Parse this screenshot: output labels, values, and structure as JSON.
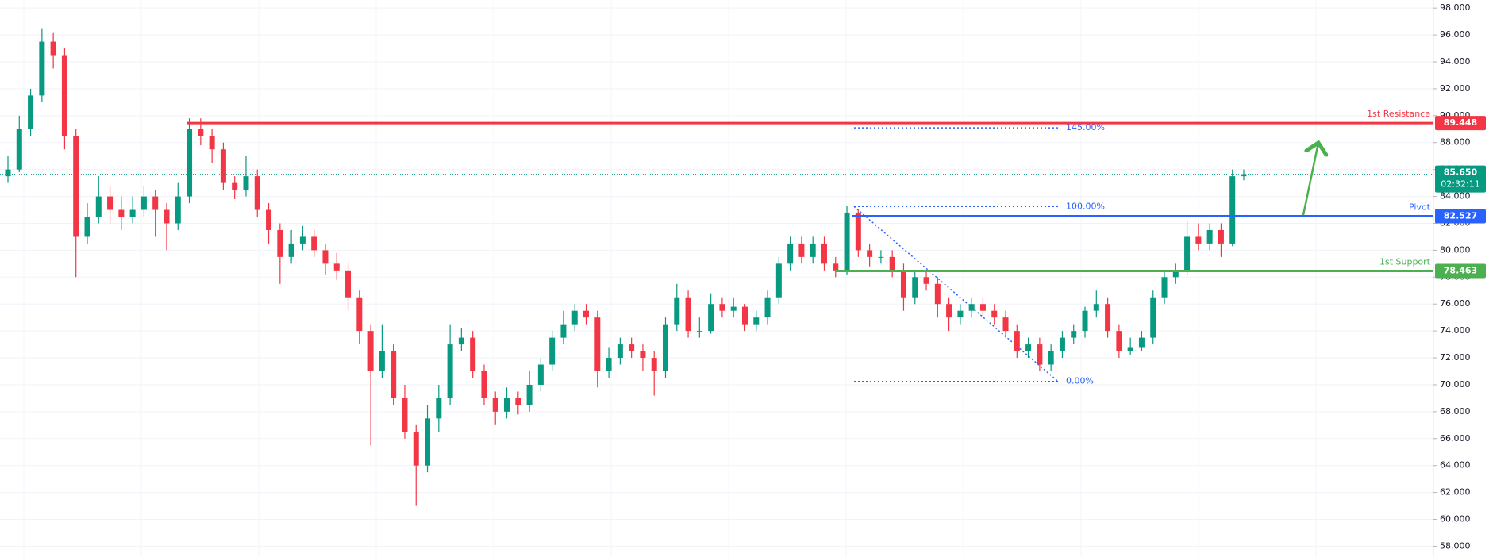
{
  "chart_data": {
    "type": "candlestick",
    "up_color": "#089981",
    "down_color": "#f23645",
    "ylim": [
      57.2,
      98.6
    ],
    "yticks": [
      {
        "value": 58,
        "label": "58.000"
      },
      {
        "value": 60,
        "label": "60.000"
      },
      {
        "value": 62,
        "label": "62.000"
      },
      {
        "value": 64,
        "label": "64.000"
      },
      {
        "value": 66,
        "label": "66.000"
      },
      {
        "value": 68,
        "label": "68.000"
      },
      {
        "value": 70,
        "label": "70.000"
      },
      {
        "value": 72,
        "label": "72.000"
      },
      {
        "value": 74,
        "label": "74.000"
      },
      {
        "value": 76,
        "label": "76.000"
      },
      {
        "value": 78,
        "label": "78.000"
      },
      {
        "value": 80,
        "label": "80.000"
      },
      {
        "value": 82,
        "label": "82.000"
      },
      {
        "value": 84,
        "label": "84.000"
      },
      {
        "value": 86,
        "label": "86.000"
      },
      {
        "value": 88,
        "label": "88.000"
      },
      {
        "value": 90,
        "label": "90.000"
      },
      {
        "value": 92,
        "label": "92.000"
      },
      {
        "value": 94,
        "label": "94.000"
      },
      {
        "value": 96,
        "label": "96.000"
      },
      {
        "value": 98,
        "label": "98.000"
      }
    ],
    "grid": true,
    "ohlc": [
      [
        85.5,
        87,
        85,
        86
      ],
      [
        86,
        90,
        85.8,
        89
      ],
      [
        89,
        92,
        88.5,
        91.5
      ],
      [
        91.5,
        96.5,
        91,
        95.5
      ],
      [
        95.5,
        96.2,
        93.5,
        94.5
      ],
      [
        94.5,
        95,
        87.5,
        88.5
      ],
      [
        88.5,
        89,
        78,
        81
      ],
      [
        81,
        83.5,
        80.5,
        82.5
      ],
      [
        82.5,
        85.5,
        82,
        84
      ],
      [
        84,
        84.8,
        82,
        83
      ],
      [
        83,
        84,
        81.5,
        82.5
      ],
      [
        82.5,
        84,
        82,
        83
      ],
      [
        83,
        84.8,
        82.5,
        84
      ],
      [
        84,
        84.5,
        81,
        83
      ],
      [
        83,
        83.5,
        80,
        82
      ],
      [
        82,
        85,
        81.5,
        84
      ],
      [
        84,
        89.8,
        83.5,
        89
      ],
      [
        89,
        89.8,
        87.8,
        88.5
      ],
      [
        88.5,
        89,
        86.5,
        87.5
      ],
      [
        87.5,
        88,
        84.5,
        85
      ],
      [
        85,
        85.5,
        83.8,
        84.5
      ],
      [
        84.5,
        87,
        84,
        85.5
      ],
      [
        85.5,
        86,
        82.5,
        83
      ],
      [
        83,
        83.5,
        80.5,
        81.5
      ],
      [
        81.5,
        82,
        77.5,
        79.5
      ],
      [
        79.5,
        81.5,
        79,
        80.5
      ],
      [
        80.5,
        81.8,
        80,
        81
      ],
      [
        81,
        81.5,
        79.5,
        80
      ],
      [
        80,
        80.5,
        78.2,
        79
      ],
      [
        79,
        79.8,
        77.8,
        78.5
      ],
      [
        78.5,
        79,
        75.5,
        76.5
      ],
      [
        76.5,
        77,
        73,
        74
      ],
      [
        74,
        74.5,
        65.5,
        71
      ],
      [
        71,
        74.5,
        70.5,
        72.5
      ],
      [
        72.5,
        73,
        68.5,
        69
      ],
      [
        69,
        70,
        66,
        66.5
      ],
      [
        66.5,
        67,
        61,
        64
      ],
      [
        64,
        68.5,
        63.5,
        67.5
      ],
      [
        67.5,
        70,
        66.5,
        69
      ],
      [
        69,
        74.5,
        68.5,
        73
      ],
      [
        73,
        74.2,
        72.5,
        73.5
      ],
      [
        73.5,
        74,
        70.5,
        71
      ],
      [
        71,
        71.5,
        68.5,
        69
      ],
      [
        69,
        69.5,
        67,
        68
      ],
      [
        68,
        69.8,
        67.5,
        69
      ],
      [
        69,
        69.5,
        67.8,
        68.5
      ],
      [
        68.5,
        71,
        68,
        70
      ],
      [
        70,
        72,
        69.5,
        71.5
      ],
      [
        71.5,
        74,
        71,
        73.5
      ],
      [
        73.5,
        75.5,
        73,
        74.5
      ],
      [
        74.5,
        76,
        74,
        75.5
      ],
      [
        75.5,
        76,
        74.5,
        75
      ],
      [
        75,
        75.5,
        69.8,
        71
      ],
      [
        71,
        72.8,
        70.5,
        72
      ],
      [
        72,
        73.5,
        71.5,
        73
      ],
      [
        73,
        73.5,
        72,
        72.5
      ],
      [
        72.5,
        73,
        71,
        72
      ],
      [
        72,
        72.5,
        69.2,
        71
      ],
      [
        71,
        75,
        70.5,
        74.5
      ],
      [
        74.5,
        77.5,
        74,
        76.5
      ],
      [
        76.5,
        77,
        73.5,
        74
      ],
      [
        74,
        75,
        73.5,
        74
      ],
      [
        74,
        76.8,
        73.8,
        76
      ],
      [
        76,
        76.5,
        75,
        75.5
      ],
      [
        75.5,
        76.5,
        75,
        75.8
      ],
      [
        75.8,
        76,
        74,
        74.5
      ],
      [
        74.5,
        75.5,
        74,
        75
      ],
      [
        75,
        77,
        74.5,
        76.5
      ],
      [
        76.5,
        79.5,
        76,
        79
      ],
      [
        79,
        81,
        78.5,
        80.5
      ],
      [
        80.5,
        81,
        79,
        79.5
      ],
      [
        79.5,
        81,
        79,
        80.5
      ],
      [
        80.5,
        81,
        78.5,
        79
      ],
      [
        79,
        79.5,
        78,
        78.5
      ],
      [
        78.5,
        83.3,
        78.2,
        82.8
      ],
      [
        82.8,
        83,
        79.5,
        80
      ],
      [
        80,
        80.5,
        78.8,
        79.5
      ],
      [
        79.5,
        80,
        79,
        79.5
      ],
      [
        79.5,
        80,
        78,
        78.5
      ],
      [
        78.5,
        79,
        75.5,
        76.5
      ],
      [
        76.5,
        78.5,
        76,
        78
      ],
      [
        78,
        78.5,
        77,
        77.5
      ],
      [
        77.5,
        78,
        75,
        76
      ],
      [
        76,
        76.5,
        74,
        75
      ],
      [
        75,
        76,
        74.5,
        75.5
      ],
      [
        75.5,
        76.5,
        75,
        76
      ],
      [
        76,
        76.5,
        75,
        75.5
      ],
      [
        75.5,
        76,
        74.5,
        75
      ],
      [
        75,
        75.5,
        73.5,
        74
      ],
      [
        74,
        74.5,
        72,
        72.5
      ],
      [
        72.5,
        73.5,
        72,
        73
      ],
      [
        73,
        73.5,
        71,
        71.5
      ],
      [
        71.5,
        73,
        71,
        72.5
      ],
      [
        72.5,
        74,
        72,
        73.5
      ],
      [
        73.5,
        74.5,
        73,
        74
      ],
      [
        74,
        75.8,
        73.5,
        75.5
      ],
      [
        75.5,
        77,
        75,
        76
      ],
      [
        76,
        76.5,
        73.5,
        74
      ],
      [
        74,
        74.5,
        72,
        72.5
      ],
      [
        72.5,
        73.5,
        72.2,
        72.8
      ],
      [
        72.8,
        74,
        72.5,
        73.5
      ],
      [
        73.5,
        77,
        73,
        76.5
      ],
      [
        76.5,
        78.5,
        76,
        78
      ],
      [
        78,
        79,
        77.5,
        78.5
      ],
      [
        78.5,
        82.2,
        78.2,
        81
      ],
      [
        81,
        82,
        80,
        80.5
      ],
      [
        80.5,
        82,
        80,
        81.5
      ],
      [
        81.5,
        82,
        79.5,
        80.5
      ],
      [
        80.5,
        86,
        80.3,
        85.5
      ],
      [
        85.5,
        86,
        85.2,
        85.65
      ]
    ],
    "levels": [
      {
        "name": "1st Resistance",
        "value": 89.448,
        "color": "#f23645"
      },
      {
        "name": "Pivot",
        "value": 82.527,
        "color": "#2962ff"
      },
      {
        "name": "1st Support",
        "value": 78.463,
        "color": "#4caf50"
      }
    ],
    "last_price": {
      "value": 85.65,
      "label": "85.650"
    },
    "countdown": "02:32:11",
    "fib": {
      "high": 83.25,
      "low": 70.25,
      "color": "#2962ff",
      "levels": [
        {
          "value": 145,
          "label": "145.00%"
        },
        {
          "value": 100,
          "label": "100.00%"
        },
        {
          "value": 0,
          "label": "0.00%"
        }
      ]
    }
  }
}
